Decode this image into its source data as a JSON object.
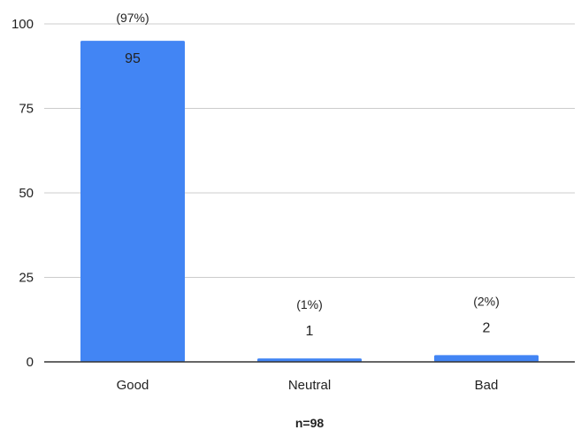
{
  "chart_data": {
    "type": "bar",
    "title": "",
    "xlabel": "n=98",
    "ylabel": "",
    "categories": [
      "Good",
      "Neutral",
      "Bad"
    ],
    "values": [
      95,
      1,
      2
    ],
    "percent_labels": [
      "(97%)",
      "(1%)",
      "(2%)"
    ],
    "ylim": [
      0,
      100
    ],
    "yticks": [
      0,
      25,
      50,
      75,
      100
    ],
    "grid": true,
    "legend": "none",
    "bar_color": "#4285f4",
    "gridline_color": "#cccccc",
    "axis_color": "#333333"
  }
}
